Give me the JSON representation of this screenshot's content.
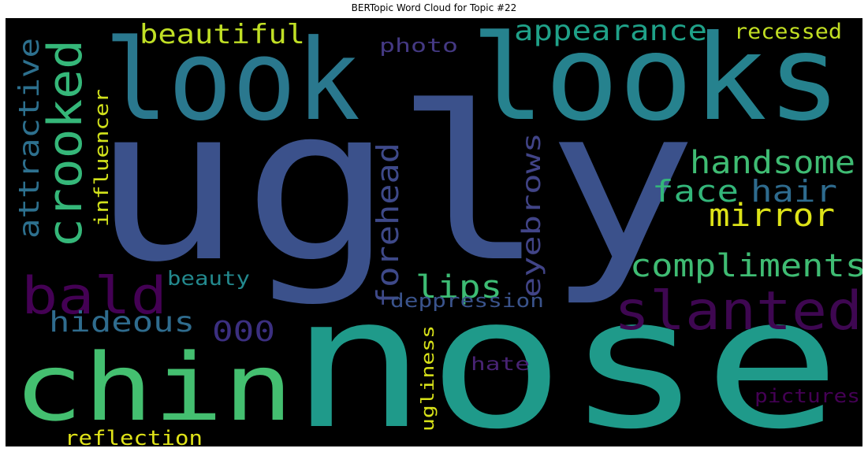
{
  "chart_data": {
    "type": "wordcloud",
    "title": "BERTopic Word Cloud for Topic #22",
    "background": "#000000",
    "words": [
      {
        "text": "ugly",
        "weight": 1.0,
        "color": "#3b518b",
        "orientation": "horizontal"
      },
      {
        "text": "nose",
        "weight": 0.98,
        "color": "#1f9a8a",
        "orientation": "horizontal"
      },
      {
        "text": "looks",
        "weight": 0.72,
        "color": "#26828e",
        "orientation": "horizontal"
      },
      {
        "text": "look",
        "weight": 0.7,
        "color": "#2a788e",
        "orientation": "horizontal"
      },
      {
        "text": "chin",
        "weight": 0.62,
        "color": "#44bf70",
        "orientation": "horizontal"
      },
      {
        "text": "crooked",
        "weight": 0.4,
        "color": "#35b779",
        "orientation": "vertical"
      },
      {
        "text": "bald",
        "weight": 0.38,
        "color": "#440154",
        "orientation": "horizontal"
      },
      {
        "text": "slanted",
        "weight": 0.38,
        "color": "#3e0751",
        "orientation": "horizontal"
      },
      {
        "text": "compliments",
        "weight": 0.25,
        "color": "#3fbc73",
        "orientation": "horizontal"
      },
      {
        "text": "handsome",
        "weight": 0.24,
        "color": "#3fbc73",
        "orientation": "horizontal"
      },
      {
        "text": "forehead",
        "weight": 0.23,
        "color": "#3e4989",
        "orientation": "vertical"
      },
      {
        "text": "attractive",
        "weight": 0.23,
        "color": "#2d708e",
        "orientation": "vertical"
      },
      {
        "text": "mirror",
        "weight": 0.22,
        "color": "#dde318",
        "orientation": "horizontal"
      },
      {
        "text": "lips",
        "weight": 0.22,
        "color": "#3dbc74",
        "orientation": "horizontal"
      },
      {
        "text": "face",
        "weight": 0.21,
        "color": "#33b67a",
        "orientation": "horizontal"
      },
      {
        "text": "hair",
        "weight": 0.21,
        "color": "#2e6b8e",
        "orientation": "horizontal"
      },
      {
        "text": "beautiful",
        "weight": 0.21,
        "color": "#c0df25",
        "orientation": "horizontal"
      },
      {
        "text": "appearance",
        "weight": 0.21,
        "color": "#1fa188",
        "orientation": "horizontal"
      },
      {
        "text": "hideous",
        "weight": 0.21,
        "color": "#2f6c8e",
        "orientation": "horizontal"
      },
      {
        "text": "000",
        "weight": 0.21,
        "color": "#3b2f80",
        "orientation": "horizontal"
      },
      {
        "text": "eyebrows",
        "weight": 0.2,
        "color": "#414487",
        "orientation": "vertical"
      },
      {
        "text": "reflection",
        "weight": 0.16,
        "color": "#dfe318",
        "orientation": "horizontal"
      },
      {
        "text": "recessed",
        "weight": 0.16,
        "color": "#c2df23",
        "orientation": "horizontal"
      },
      {
        "text": "deppression",
        "weight": 0.16,
        "color": "#3a538b",
        "orientation": "horizontal"
      },
      {
        "text": "influencer",
        "weight": 0.16,
        "color": "#d2e21b",
        "orientation": "vertical"
      },
      {
        "text": "beauty",
        "weight": 0.15,
        "color": "#23898e",
        "orientation": "horizontal"
      },
      {
        "text": "pictures",
        "weight": 0.15,
        "color": "#440154",
        "orientation": "horizontal"
      },
      {
        "text": "photo",
        "weight": 0.15,
        "color": "#443983",
        "orientation": "horizontal"
      },
      {
        "text": "ugliness",
        "weight": 0.14,
        "color": "#d8e219",
        "orientation": "vertical"
      },
      {
        "text": "hate",
        "weight": 0.14,
        "color": "#482374",
        "orientation": "horizontal"
      }
    ]
  }
}
